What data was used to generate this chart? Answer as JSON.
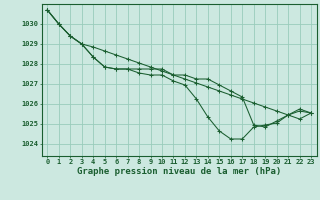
{
  "background_color": "#cce8e0",
  "grid_color": "#99ccbb",
  "line_color": "#1a5e30",
  "title": "Graphe pression niveau de la mer (hPa)",
  "title_fontsize": 6.5,
  "ylabel_ticks": [
    1024,
    1025,
    1026,
    1027,
    1028,
    1029,
    1030
  ],
  "xlim": [
    -0.5,
    23.5
  ],
  "ylim": [
    1023.4,
    1031.0
  ],
  "x_hours": [
    0,
    1,
    2,
    3,
    4,
    5,
    6,
    7,
    8,
    9,
    10,
    11,
    12,
    13,
    14,
    15,
    16,
    17,
    18,
    19,
    20,
    21,
    22,
    23
  ],
  "series": [
    [
      1030.7,
      1030.0,
      1029.4,
      1029.0,
      1028.35,
      1027.85,
      1027.75,
      1027.75,
      1027.55,
      1027.45,
      1027.45,
      1027.15,
      1026.95,
      1026.25,
      1025.35,
      1024.65,
      1024.25,
      1024.25,
      1024.85,
      1024.95,
      1025.05,
      1025.45,
      1025.65,
      1025.55
    ],
    [
      1030.7,
      1030.0,
      1029.4,
      1029.0,
      1028.35,
      1027.85,
      1027.75,
      1027.75,
      1027.75,
      1027.75,
      1027.75,
      1027.45,
      1027.45,
      1027.25,
      1027.25,
      1026.95,
      1026.65,
      1026.35,
      1024.95,
      1024.85,
      1025.15,
      1025.45,
      1025.75,
      1025.55
    ],
    [
      1030.7,
      1030.0,
      1029.4,
      1029.0,
      1028.85,
      1028.65,
      1028.45,
      1028.25,
      1028.05,
      1027.85,
      1027.65,
      1027.45,
      1027.25,
      1027.05,
      1026.85,
      1026.65,
      1026.45,
      1026.25,
      1026.05,
      1025.85,
      1025.65,
      1025.45,
      1025.25,
      1025.55
    ]
  ],
  "tick_fontsize": 5.0,
  "tick_color": "#1a5e30"
}
